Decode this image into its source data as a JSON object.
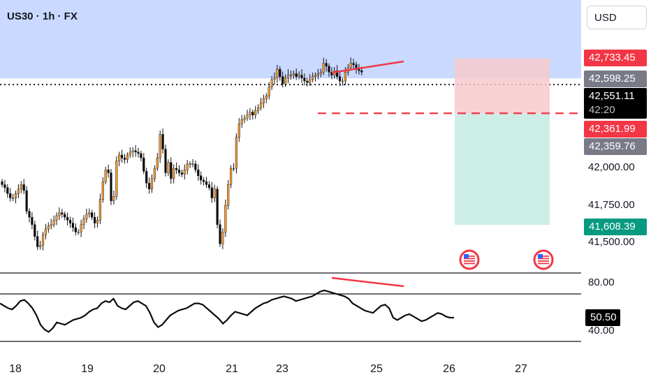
{
  "header": {
    "symbol": "US30 · 1h · FX",
    "currency": "USD"
  },
  "price_labels": {
    "target": "42,733.45",
    "high_line": "42,598.25",
    "last_price": "42,551.11",
    "countdown": "42:20",
    "entry": "42,361.99",
    "other": "42,359.76",
    "stop": "41,608.39"
  },
  "rsi_value": "50.50",
  "colors": {
    "up": "#ef9a3a",
    "down": "#0b0b0b",
    "zone": "#c9d9ff",
    "short_zone": "#f7c9cc",
    "long_zone": "#cdeee7",
    "marker": "#f23645"
  },
  "chart_data": [
    {
      "type": "candlestick",
      "title": "US30 · 1h · FX",
      "x_ticks": [
        "18",
        "19",
        "20",
        "21",
        "23",
        "25",
        "26",
        "27"
      ],
      "y_ticks": [
        42000,
        41750,
        41500
      ],
      "ylim": [
        41400,
        42900
      ],
      "close_series": [
        41880,
        41860,
        41820,
        41790,
        41790,
        41820,
        41850,
        41880,
        41840,
        41700,
        41660,
        41610,
        41530,
        41460,
        41470,
        41540,
        41580,
        41600,
        41610,
        41640,
        41670,
        41690,
        41680,
        41660,
        41640,
        41620,
        41590,
        41560,
        41560,
        41610,
        41650,
        41680,
        41690,
        41660,
        41620,
        41640,
        41780,
        41900,
        41980,
        41960,
        41770,
        41800,
        42040,
        42080,
        42060,
        42050,
        42080,
        42100,
        42110,
        42100,
        42090,
        42060,
        41970,
        41890,
        41850,
        41920,
        41990,
        42060,
        42220,
        42120,
        41960,
        42030,
        41920,
        41990,
        41980,
        41960,
        41950,
        41980,
        42020,
        42020,
        42020,
        41980,
        41940,
        41910,
        41900,
        41880,
        41860,
        41790,
        41850,
        41610,
        41480,
        41560,
        41740,
        41880,
        41990,
        41990,
        42200,
        42290,
        42320,
        42330,
        42350,
        42370,
        42350,
        42380,
        42400,
        42430,
        42460,
        42480,
        42540,
        42590,
        42600,
        42660,
        42610,
        42560,
        42600,
        42620,
        42620,
        42630,
        42610,
        42620,
        42600,
        42580,
        42570,
        42590,
        42610,
        42620,
        42630,
        42640,
        42700,
        42680,
        42640,
        42620,
        42650,
        42610,
        42580,
        42580,
        42640,
        42670,
        42700,
        42690,
        42660,
        42650,
        42640
      ],
      "annotations": {
        "resistance_zone_from": 42598.25,
        "entry": 42361.99,
        "target": 42733.45,
        "stop": 41608.39,
        "last_price": 42551.11
      }
    },
    {
      "type": "line",
      "ylabel": "",
      "y_ticks": [
        80.0,
        40.0
      ],
      "levels": [
        70,
        30
      ],
      "value": 50.5,
      "series": [
        {
          "values": [
            62,
            60,
            58,
            57,
            60,
            64,
            65,
            62,
            58,
            52,
            44,
            40,
            38,
            41,
            46,
            45,
            44,
            46,
            48,
            49,
            50,
            52,
            55,
            57,
            58,
            62,
            64,
            63,
            66,
            60,
            58,
            57,
            60,
            63,
            64,
            62,
            60,
            54,
            46,
            42,
            44,
            48,
            52,
            54,
            56,
            57,
            58,
            60,
            62,
            62,
            61,
            58,
            55,
            52,
            49,
            45,
            48,
            52,
            55,
            54,
            53,
            52,
            55,
            58,
            60,
            62,
            63,
            65,
            66,
            67,
            68,
            67,
            66,
            64,
            65,
            66,
            67,
            68,
            70,
            72,
            73,
            72,
            71,
            70,
            69,
            68,
            66,
            62,
            60,
            58,
            56,
            55,
            54,
            57,
            60,
            61,
            58,
            50,
            48,
            50,
            52,
            53,
            51,
            49,
            47,
            48,
            50,
            52,
            54,
            53,
            51,
            50,
            50
          ]
        }
      ]
    }
  ]
}
